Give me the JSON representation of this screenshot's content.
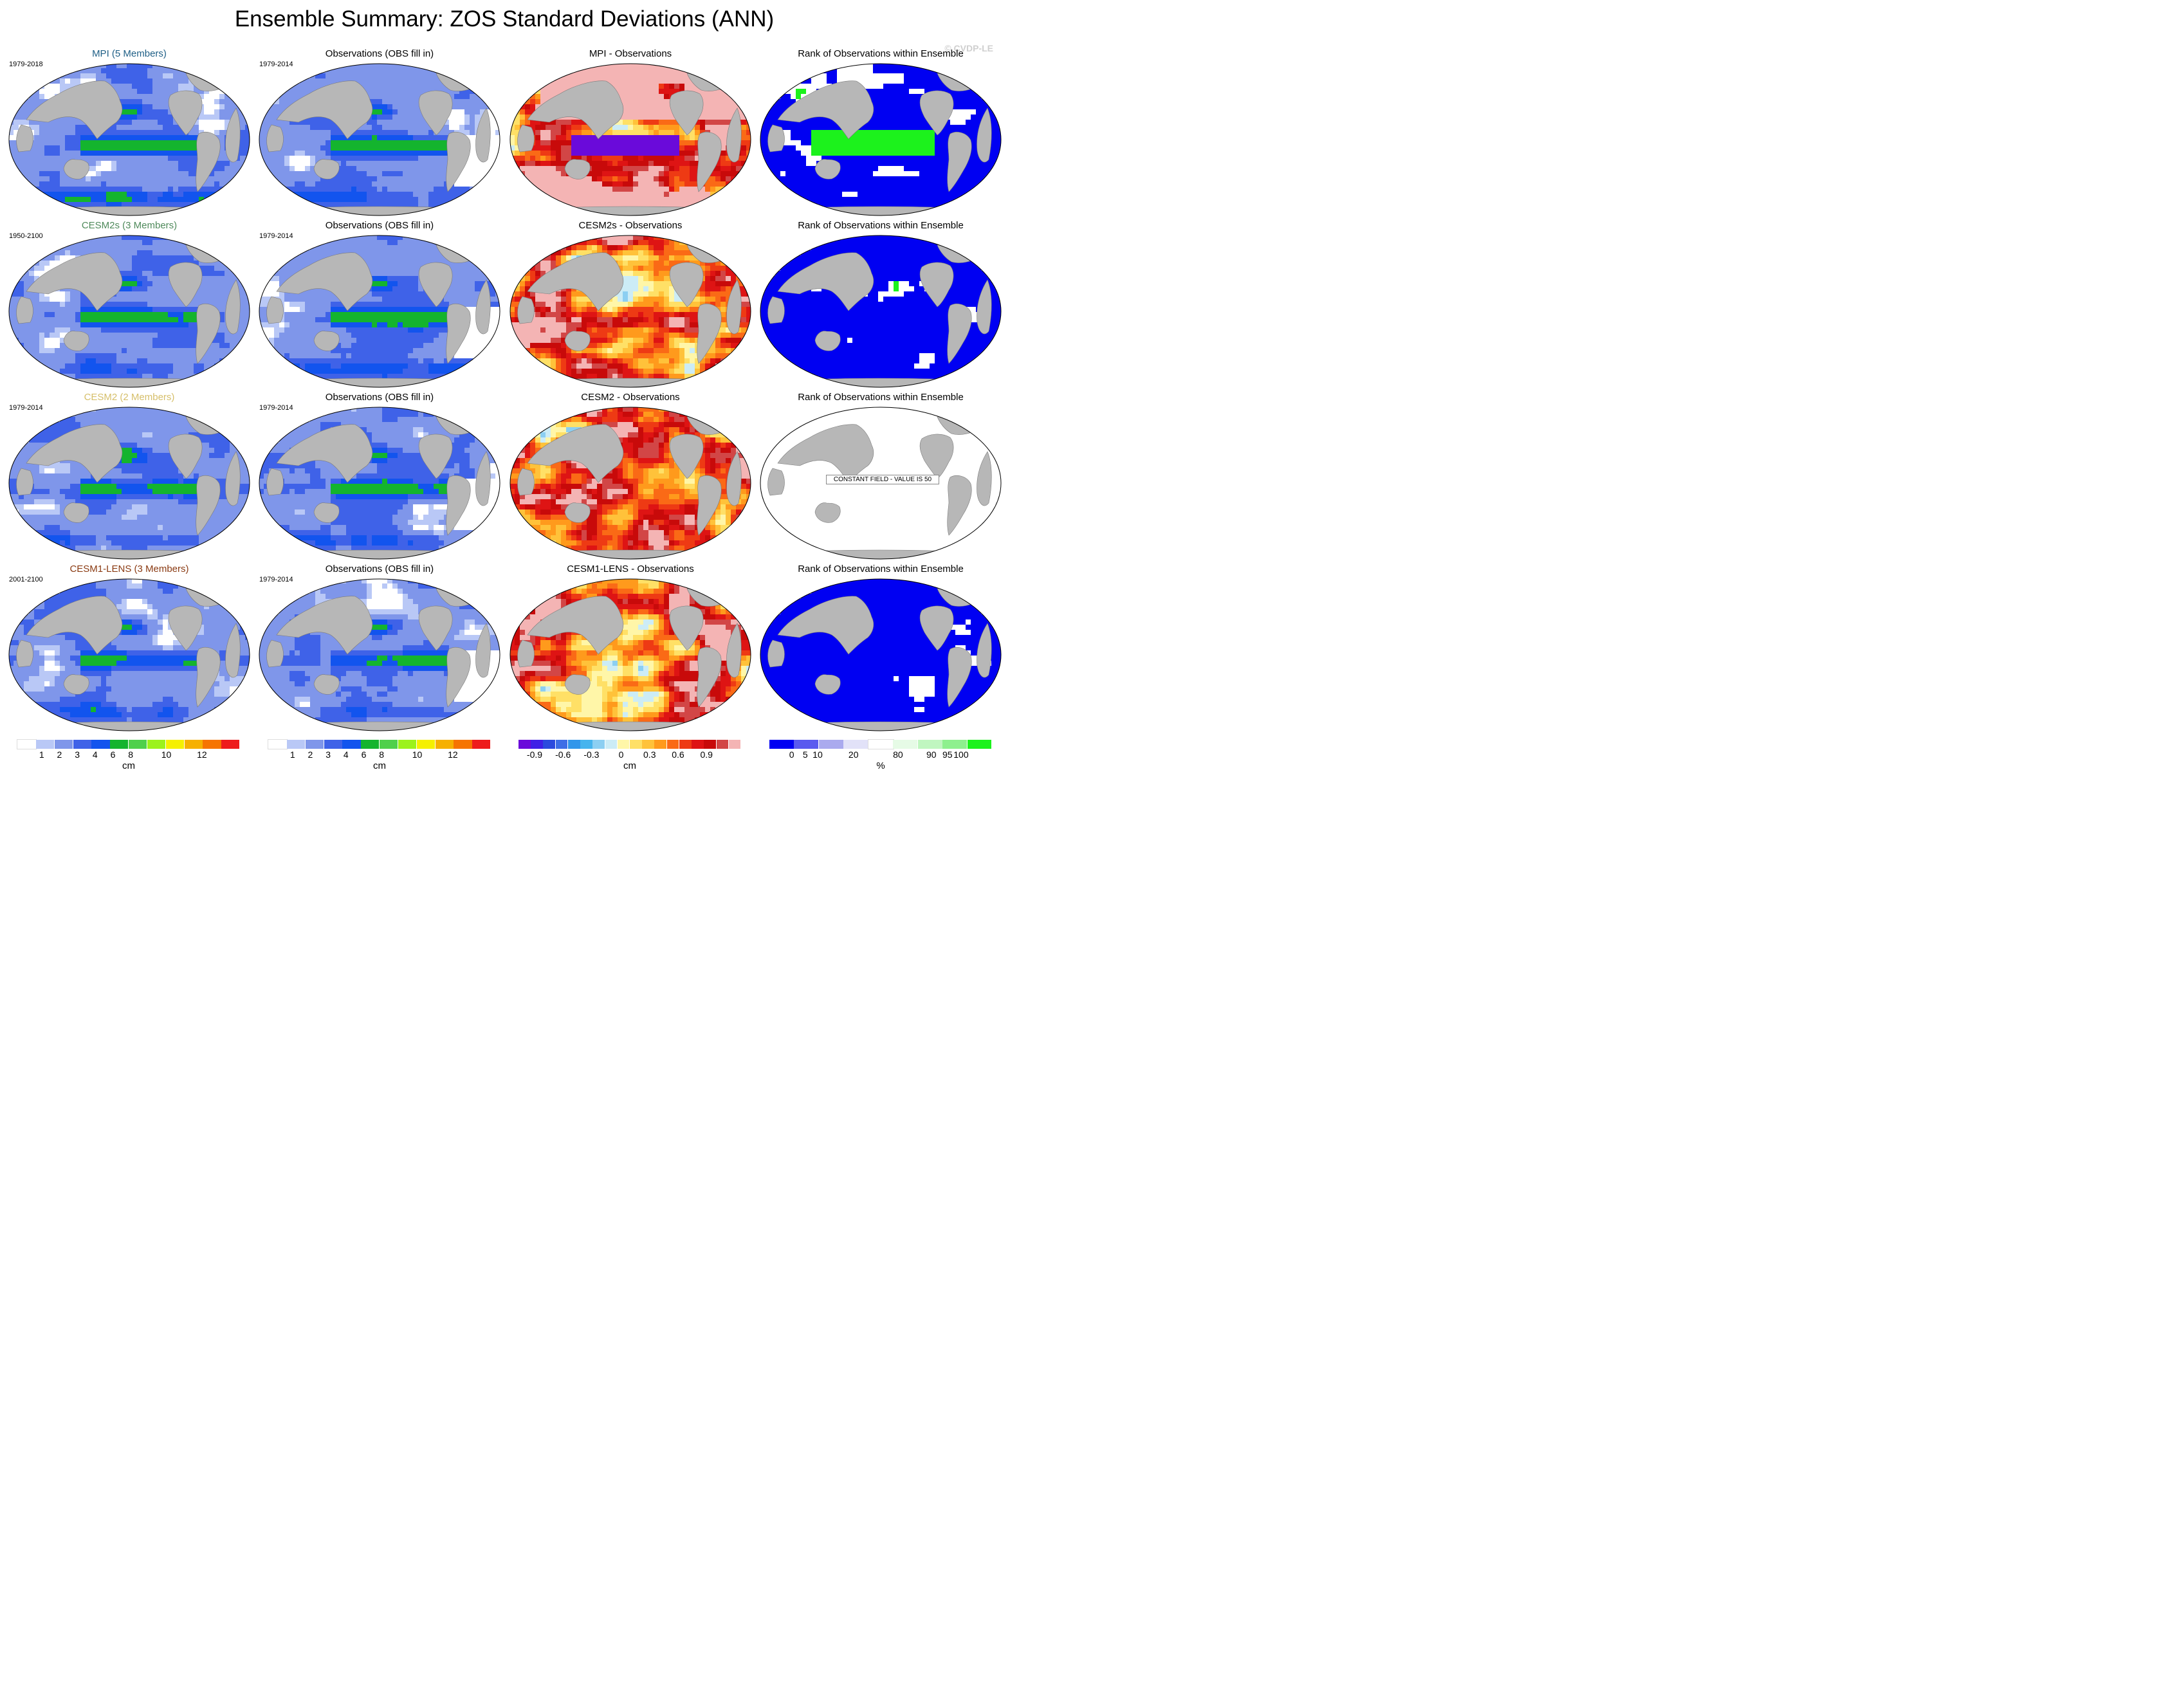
{
  "title": "Ensemble Summary: ZOS Standard Deviations (ANN)",
  "watermark": "© CVDP-LE",
  "constant_field_label": "CONSTANT FIELD - VALUE IS 50",
  "colors": {
    "land": "#b7b7b7",
    "ocean_bg": "#ffffff",
    "std_scale": [
      "#ffffff",
      "#b9c8f6",
      "#7f96ea",
      "#3f62e8",
      "#1254ee",
      "#14b42e",
      "#4fd04b",
      "#9cf21c",
      "#f5f000",
      "#f6b000",
      "#f67400",
      "#ee1c1c"
    ],
    "diff_scale": [
      "#6a0ada",
      "#3f20e6",
      "#2b4ade",
      "#3d6ee6",
      "#3296ea",
      "#46b4ee",
      "#8ccff2",
      "#ccecf6",
      "#fff6a8",
      "#ffe066",
      "#ffc23a",
      "#ff9a1c",
      "#fa6a16",
      "#ee3a14",
      "#de1414",
      "#c80a0a",
      "#d24646",
      "#f4b4b4"
    ],
    "rank_scale": [
      "#0000f2",
      "#5a5aef",
      "#aaaaee",
      "#e2e2f8",
      "#ffffff",
      "#e6fbe6",
      "#c0f6c0",
      "#8ef08e",
      "#1cf21c"
    ]
  },
  "chart_data": {
    "type": "heatmap",
    "rows": [
      {
        "model": "MPI (5 Members)",
        "model_color": "#1f5f86",
        "model_period": "1979-2018",
        "obs_title": "Observations (OBS fill in)",
        "obs_period": "1979-2014",
        "diff_title": "MPI - Observations",
        "rank_title": "Rank of Observations within Ensemble"
      },
      {
        "model": "CESM2s (3 Members)",
        "model_color": "#4f8a5b",
        "model_period": "1950-2100",
        "obs_title": "Observations (OBS fill in)",
        "obs_period": "1979-2014",
        "diff_title": "CESM2s - Observations",
        "rank_title": "Rank of Observations within Ensemble"
      },
      {
        "model": "CESM2 (2 Members)",
        "model_color": "#d6bf6a",
        "model_period": "1979-2014",
        "obs_title": "Observations (OBS fill in)",
        "obs_period": "1979-2014",
        "diff_title": "CESM2 - Observations",
        "rank_title": "Rank of Observations within Ensemble"
      },
      {
        "model": "CESM1-LENS (3 Members)",
        "model_color": "#8a3a12",
        "model_period": "2001-2100",
        "obs_title": "Observations (OBS fill in)",
        "obs_period": "1979-2014",
        "diff_title": "CESM1-LENS - Observations",
        "rank_title": "Rank of Observations within Ensemble"
      }
    ],
    "colorbars": [
      {
        "name": "std",
        "unit": "cm",
        "ticks": [
          "1",
          "2",
          "3",
          "4",
          "6",
          "8",
          "10",
          "12"
        ],
        "levels": [
          1,
          2,
          3,
          4,
          6,
          8,
          10,
          12
        ]
      },
      {
        "name": "std-obs",
        "unit": "cm",
        "ticks": [
          "1",
          "2",
          "3",
          "4",
          "6",
          "8",
          "10",
          "12"
        ],
        "levels": [
          1,
          2,
          3,
          4,
          6,
          8,
          10,
          12
        ]
      },
      {
        "name": "diff",
        "unit": "cm",
        "ticks": [
          "-0.9",
          "-0.6",
          "-0.3",
          "0",
          "0.3",
          "0.6",
          "0.9"
        ],
        "levels": [
          -0.9,
          -0.6,
          -0.3,
          0,
          0.3,
          0.6,
          0.9
        ]
      },
      {
        "name": "rank",
        "unit": "%",
        "ticks": [
          "0",
          "5",
          "10",
          "20",
          "80",
          "90",
          "95",
          "100"
        ],
        "levels": [
          0,
          5,
          10,
          20,
          80,
          90,
          95,
          100
        ]
      }
    ]
  }
}
